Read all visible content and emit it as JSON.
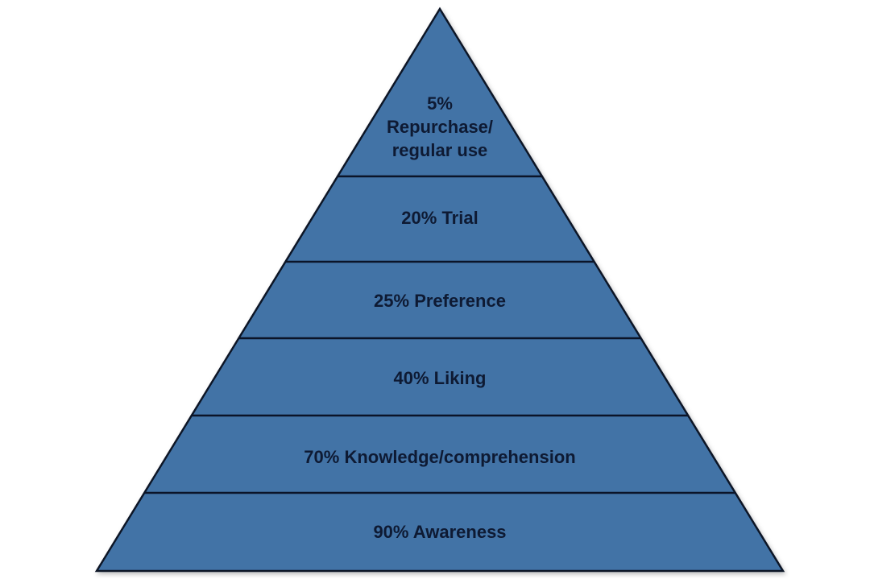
{
  "colors": {
    "fill": "#4273a6",
    "stroke": "#0b1428",
    "text": "#0e1a33"
  },
  "levels": [
    {
      "lines": [
        "5%",
        "Repurchase/",
        "regular use"
      ]
    },
    {
      "lines": [
        "20% Trial"
      ]
    },
    {
      "lines": [
        "25% Preference"
      ]
    },
    {
      "lines": [
        "40% Liking"
      ]
    },
    {
      "lines": [
        "70% Knowledge/comprehension"
      ]
    },
    {
      "lines": [
        "90% Awareness"
      ]
    }
  ]
}
